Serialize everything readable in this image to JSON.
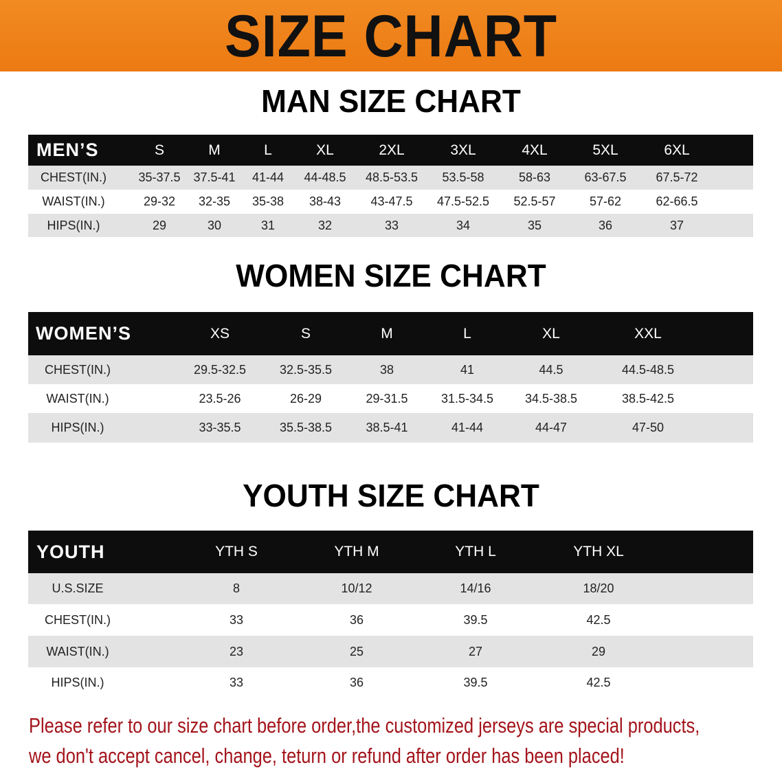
{
  "banner": {
    "title": "SIZE CHART",
    "color": "#ee8219"
  },
  "men": {
    "title": "MAN SIZE CHART",
    "corner": "MEN’S",
    "columns": [
      "S",
      "M",
      "L",
      "XL",
      "2XL",
      "3XL",
      "4XL",
      "5XL",
      "6XL"
    ],
    "rows": [
      {
        "label": "CHEST(IN.)",
        "values": [
          "35-37.5",
          "37.5-41",
          "41-44",
          "44-48.5",
          "48.5-53.5",
          "53.5-58",
          "58-63",
          "63-67.5",
          "67.5-72"
        ]
      },
      {
        "label": "WAIST(IN.)",
        "values": [
          "29-32",
          "32-35",
          "35-38",
          "38-43",
          "43-47.5",
          "47.5-52.5",
          "52.5-57",
          "57-62",
          "62-66.5"
        ]
      },
      {
        "label": "HIPS(IN.)",
        "values": [
          "29",
          "30",
          "31",
          "32",
          "33",
          "34",
          "35",
          "36",
          "37"
        ]
      }
    ]
  },
  "women": {
    "title": "WOMEN SIZE CHART",
    "corner": "WOMEN’S",
    "columns": [
      "XS",
      "S",
      "M",
      "L",
      "XL",
      "XXL"
    ],
    "rows": [
      {
        "label": "CHEST(IN.)",
        "values": [
          "29.5-32.5",
          "32.5-35.5",
          "38",
          "41",
          "44.5",
          "44.5-48.5"
        ]
      },
      {
        "label": "WAIST(IN.)",
        "values": [
          "23.5-26",
          "26-29",
          "29-31.5",
          "31.5-34.5",
          "34.5-38.5",
          "38.5-42.5"
        ]
      },
      {
        "label": "HIPS(IN.)",
        "values": [
          "33-35.5",
          "35.5-38.5",
          "38.5-41",
          "41-44",
          "44-47",
          "47-50"
        ]
      }
    ]
  },
  "youth": {
    "title": "YOUTH SIZE CHART",
    "corner": "YOUTH",
    "columns": [
      "YTH S",
      "YTH M",
      "YTH L",
      "YTH XL"
    ],
    "rows": [
      {
        "label": "U.S.SIZE",
        "values": [
          "8",
          "10/12",
          "14/16",
          "18/20"
        ]
      },
      {
        "label": "CHEST(IN.)",
        "values": [
          "33",
          "36",
          "39.5",
          "42.5"
        ]
      },
      {
        "label": "WAIST(IN.)",
        "values": [
          "23",
          "25",
          "27",
          "29"
        ]
      },
      {
        "label": "HIPS(IN.)",
        "values": [
          "33",
          "36",
          "39.5",
          "42.5"
        ]
      }
    ]
  },
  "note": {
    "line1": "Please refer to our size chart before order,the customized jerseys are special products,",
    "line2": "we don't accept cancel, change, teturn or refund after order has been placed!",
    "color": "#a3141b"
  }
}
